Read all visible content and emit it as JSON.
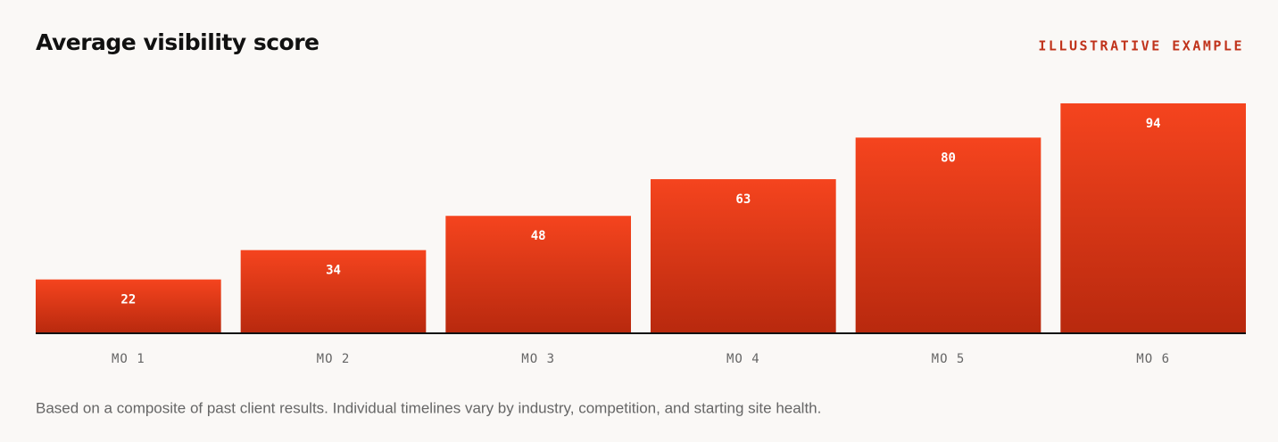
{
  "chart_data": {
    "type": "bar",
    "title": "Average visibility score",
    "badge": "ILLUSTRATIVE EXAMPLE",
    "categories": [
      "MO 1",
      "MO 2",
      "MO 3",
      "MO 4",
      "MO 5",
      "MO 6"
    ],
    "values": [
      22,
      34,
      48,
      63,
      80,
      94
    ],
    "color": "#f5441e",
    "ylim": [
      0,
      100
    ],
    "note": "Based on a composite of past client results. Individual timelines vary by industry, competition, and starting site health."
  }
}
